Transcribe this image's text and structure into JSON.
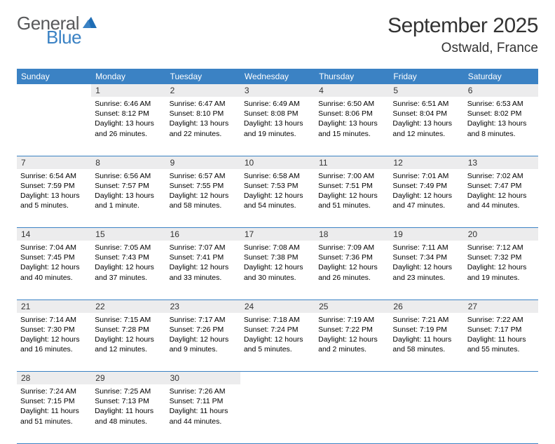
{
  "logo": {
    "text1": "General",
    "text2": "Blue"
  },
  "title": "September 2025",
  "location": "Ostwald, France",
  "colors": {
    "header_bg": "#3b82c4",
    "header_text": "#ffffff",
    "daynum_bg": "#ececed",
    "row_border": "#3b82c4",
    "logo_gray": "#58595b",
    "logo_blue": "#3b82c4"
  },
  "day_headers": [
    "Sunday",
    "Monday",
    "Tuesday",
    "Wednesday",
    "Thursday",
    "Friday",
    "Saturday"
  ],
  "weeks": [
    {
      "nums": [
        "",
        "1",
        "2",
        "3",
        "4",
        "5",
        "6"
      ],
      "cells": [
        {
          "sunrise": "",
          "sunset": "",
          "daylight1": "",
          "daylight2": ""
        },
        {
          "sunrise": "Sunrise: 6:46 AM",
          "sunset": "Sunset: 8:12 PM",
          "daylight1": "Daylight: 13 hours",
          "daylight2": "and 26 minutes."
        },
        {
          "sunrise": "Sunrise: 6:47 AM",
          "sunset": "Sunset: 8:10 PM",
          "daylight1": "Daylight: 13 hours",
          "daylight2": "and 22 minutes."
        },
        {
          "sunrise": "Sunrise: 6:49 AM",
          "sunset": "Sunset: 8:08 PM",
          "daylight1": "Daylight: 13 hours",
          "daylight2": "and 19 minutes."
        },
        {
          "sunrise": "Sunrise: 6:50 AM",
          "sunset": "Sunset: 8:06 PM",
          "daylight1": "Daylight: 13 hours",
          "daylight2": "and 15 minutes."
        },
        {
          "sunrise": "Sunrise: 6:51 AM",
          "sunset": "Sunset: 8:04 PM",
          "daylight1": "Daylight: 13 hours",
          "daylight2": "and 12 minutes."
        },
        {
          "sunrise": "Sunrise: 6:53 AM",
          "sunset": "Sunset: 8:02 PM",
          "daylight1": "Daylight: 13 hours",
          "daylight2": "and 8 minutes."
        }
      ]
    },
    {
      "nums": [
        "7",
        "8",
        "9",
        "10",
        "11",
        "12",
        "13"
      ],
      "cells": [
        {
          "sunrise": "Sunrise: 6:54 AM",
          "sunset": "Sunset: 7:59 PM",
          "daylight1": "Daylight: 13 hours",
          "daylight2": "and 5 minutes."
        },
        {
          "sunrise": "Sunrise: 6:56 AM",
          "sunset": "Sunset: 7:57 PM",
          "daylight1": "Daylight: 13 hours",
          "daylight2": "and 1 minute."
        },
        {
          "sunrise": "Sunrise: 6:57 AM",
          "sunset": "Sunset: 7:55 PM",
          "daylight1": "Daylight: 12 hours",
          "daylight2": "and 58 minutes."
        },
        {
          "sunrise": "Sunrise: 6:58 AM",
          "sunset": "Sunset: 7:53 PM",
          "daylight1": "Daylight: 12 hours",
          "daylight2": "and 54 minutes."
        },
        {
          "sunrise": "Sunrise: 7:00 AM",
          "sunset": "Sunset: 7:51 PM",
          "daylight1": "Daylight: 12 hours",
          "daylight2": "and 51 minutes."
        },
        {
          "sunrise": "Sunrise: 7:01 AM",
          "sunset": "Sunset: 7:49 PM",
          "daylight1": "Daylight: 12 hours",
          "daylight2": "and 47 minutes."
        },
        {
          "sunrise": "Sunrise: 7:02 AM",
          "sunset": "Sunset: 7:47 PM",
          "daylight1": "Daylight: 12 hours",
          "daylight2": "and 44 minutes."
        }
      ]
    },
    {
      "nums": [
        "14",
        "15",
        "16",
        "17",
        "18",
        "19",
        "20"
      ],
      "cells": [
        {
          "sunrise": "Sunrise: 7:04 AM",
          "sunset": "Sunset: 7:45 PM",
          "daylight1": "Daylight: 12 hours",
          "daylight2": "and 40 minutes."
        },
        {
          "sunrise": "Sunrise: 7:05 AM",
          "sunset": "Sunset: 7:43 PM",
          "daylight1": "Daylight: 12 hours",
          "daylight2": "and 37 minutes."
        },
        {
          "sunrise": "Sunrise: 7:07 AM",
          "sunset": "Sunset: 7:41 PM",
          "daylight1": "Daylight: 12 hours",
          "daylight2": "and 33 minutes."
        },
        {
          "sunrise": "Sunrise: 7:08 AM",
          "sunset": "Sunset: 7:38 PM",
          "daylight1": "Daylight: 12 hours",
          "daylight2": "and 30 minutes."
        },
        {
          "sunrise": "Sunrise: 7:09 AM",
          "sunset": "Sunset: 7:36 PM",
          "daylight1": "Daylight: 12 hours",
          "daylight2": "and 26 minutes."
        },
        {
          "sunrise": "Sunrise: 7:11 AM",
          "sunset": "Sunset: 7:34 PM",
          "daylight1": "Daylight: 12 hours",
          "daylight2": "and 23 minutes."
        },
        {
          "sunrise": "Sunrise: 7:12 AM",
          "sunset": "Sunset: 7:32 PM",
          "daylight1": "Daylight: 12 hours",
          "daylight2": "and 19 minutes."
        }
      ]
    },
    {
      "nums": [
        "21",
        "22",
        "23",
        "24",
        "25",
        "26",
        "27"
      ],
      "cells": [
        {
          "sunrise": "Sunrise: 7:14 AM",
          "sunset": "Sunset: 7:30 PM",
          "daylight1": "Daylight: 12 hours",
          "daylight2": "and 16 minutes."
        },
        {
          "sunrise": "Sunrise: 7:15 AM",
          "sunset": "Sunset: 7:28 PM",
          "daylight1": "Daylight: 12 hours",
          "daylight2": "and 12 minutes."
        },
        {
          "sunrise": "Sunrise: 7:17 AM",
          "sunset": "Sunset: 7:26 PM",
          "daylight1": "Daylight: 12 hours",
          "daylight2": "and 9 minutes."
        },
        {
          "sunrise": "Sunrise: 7:18 AM",
          "sunset": "Sunset: 7:24 PM",
          "daylight1": "Daylight: 12 hours",
          "daylight2": "and 5 minutes."
        },
        {
          "sunrise": "Sunrise: 7:19 AM",
          "sunset": "Sunset: 7:22 PM",
          "daylight1": "Daylight: 12 hours",
          "daylight2": "and 2 minutes."
        },
        {
          "sunrise": "Sunrise: 7:21 AM",
          "sunset": "Sunset: 7:19 PM",
          "daylight1": "Daylight: 11 hours",
          "daylight2": "and 58 minutes."
        },
        {
          "sunrise": "Sunrise: 7:22 AM",
          "sunset": "Sunset: 7:17 PM",
          "daylight1": "Daylight: 11 hours",
          "daylight2": "and 55 minutes."
        }
      ]
    },
    {
      "nums": [
        "28",
        "29",
        "30",
        "",
        "",
        "",
        ""
      ],
      "cells": [
        {
          "sunrise": "Sunrise: 7:24 AM",
          "sunset": "Sunset: 7:15 PM",
          "daylight1": "Daylight: 11 hours",
          "daylight2": "and 51 minutes."
        },
        {
          "sunrise": "Sunrise: 7:25 AM",
          "sunset": "Sunset: 7:13 PM",
          "daylight1": "Daylight: 11 hours",
          "daylight2": "and 48 minutes."
        },
        {
          "sunrise": "Sunrise: 7:26 AM",
          "sunset": "Sunset: 7:11 PM",
          "daylight1": "Daylight: 11 hours",
          "daylight2": "and 44 minutes."
        },
        {
          "sunrise": "",
          "sunset": "",
          "daylight1": "",
          "daylight2": ""
        },
        {
          "sunrise": "",
          "sunset": "",
          "daylight1": "",
          "daylight2": ""
        },
        {
          "sunrise": "",
          "sunset": "",
          "daylight1": "",
          "daylight2": ""
        },
        {
          "sunrise": "",
          "sunset": "",
          "daylight1": "",
          "daylight2": ""
        }
      ]
    }
  ]
}
